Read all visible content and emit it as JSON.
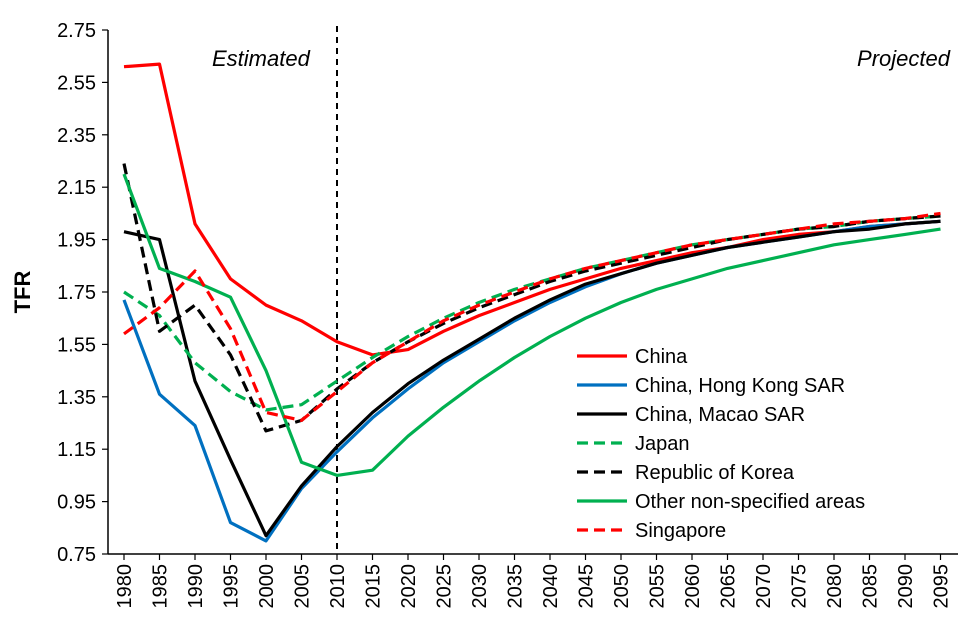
{
  "chart_data": {
    "type": "line",
    "title": "",
    "xlabel": "",
    "ylabel": "TFR",
    "ylim": [
      0.75,
      2.75
    ],
    "yticks": [
      "0.75",
      "0.95",
      "1.15",
      "1.35",
      "1.55",
      "1.75",
      "1.95",
      "2.15",
      "2.35",
      "2.55",
      "2.75"
    ],
    "x": [
      "1980",
      "1985",
      "1990",
      "1995",
      "2000",
      "2005",
      "2010",
      "2015",
      "2020",
      "2025",
      "2030",
      "2035",
      "2040",
      "2045",
      "2050",
      "2055",
      "2060",
      "2065",
      "2070",
      "2075",
      "2080",
      "2085",
      "2090",
      "2095"
    ],
    "grid": false,
    "divider_x": 2010,
    "annotations": [
      {
        "text": "Estimated",
        "position": "top-left"
      },
      {
        "text": "Projected",
        "position": "top-right"
      }
    ],
    "legend_position": "bottom-right",
    "series": [
      {
        "name": "China",
        "color": "#ff0000",
        "dash": "solid",
        "values": [
          2.61,
          2.62,
          2.01,
          1.8,
          1.7,
          1.64,
          1.56,
          1.51,
          1.53,
          1.6,
          1.66,
          1.71,
          1.76,
          1.8,
          1.84,
          1.87,
          1.9,
          1.92,
          1.95,
          1.97,
          1.98,
          2.0,
          2.01,
          2.02
        ]
      },
      {
        "name": "China, Hong Kong SAR",
        "color": "#0070c0",
        "dash": "solid",
        "values": [
          1.72,
          1.36,
          1.24,
          0.87,
          0.8,
          1.0,
          1.14,
          1.27,
          1.38,
          1.48,
          1.56,
          1.64,
          1.71,
          1.77,
          1.82,
          1.86,
          1.89,
          1.92,
          1.94,
          1.96,
          1.98,
          2.0,
          2.01,
          2.02
        ]
      },
      {
        "name": "China, Macao SAR",
        "color": "#000000",
        "dash": "solid",
        "values": [
          1.98,
          1.95,
          1.41,
          1.11,
          0.82,
          1.01,
          1.16,
          1.29,
          1.4,
          1.49,
          1.57,
          1.65,
          1.72,
          1.78,
          1.82,
          1.86,
          1.89,
          1.92,
          1.94,
          1.96,
          1.98,
          1.99,
          2.01,
          2.02
        ]
      },
      {
        "name": "Japan",
        "color": "#00b050",
        "dash": "dashed",
        "values": [
          1.75,
          1.66,
          1.48,
          1.37,
          1.3,
          1.32,
          1.41,
          1.5,
          1.58,
          1.65,
          1.71,
          1.76,
          1.8,
          1.84,
          1.87,
          1.9,
          1.93,
          1.95,
          1.97,
          1.99,
          2.0,
          2.02,
          2.03,
          2.04
        ]
      },
      {
        "name": "Republic of Korea",
        "color": "#000000",
        "dash": "dashed",
        "values": [
          2.24,
          1.6,
          1.7,
          1.51,
          1.22,
          1.26,
          1.38,
          1.48,
          1.56,
          1.63,
          1.69,
          1.74,
          1.79,
          1.83,
          1.86,
          1.89,
          1.92,
          1.95,
          1.97,
          1.99,
          2.0,
          2.02,
          2.03,
          2.04
        ]
      },
      {
        "name": "Other non-specified areas",
        "color": "#00b050",
        "dash": "solid",
        "values": [
          2.2,
          1.84,
          1.79,
          1.73,
          1.45,
          1.1,
          1.05,
          1.07,
          1.2,
          1.31,
          1.41,
          1.5,
          1.58,
          1.65,
          1.71,
          1.76,
          1.8,
          1.84,
          1.87,
          1.9,
          1.93,
          1.95,
          1.97,
          1.99
        ]
      },
      {
        "name": "Singapore",
        "color": "#ff0000",
        "dash": "dashed",
        "values": [
          1.59,
          1.69,
          1.83,
          1.61,
          1.29,
          1.26,
          1.37,
          1.48,
          1.56,
          1.64,
          1.7,
          1.75,
          1.8,
          1.84,
          1.87,
          1.9,
          1.93,
          1.95,
          1.97,
          1.99,
          2.01,
          2.02,
          2.03,
          2.05
        ]
      }
    ]
  }
}
